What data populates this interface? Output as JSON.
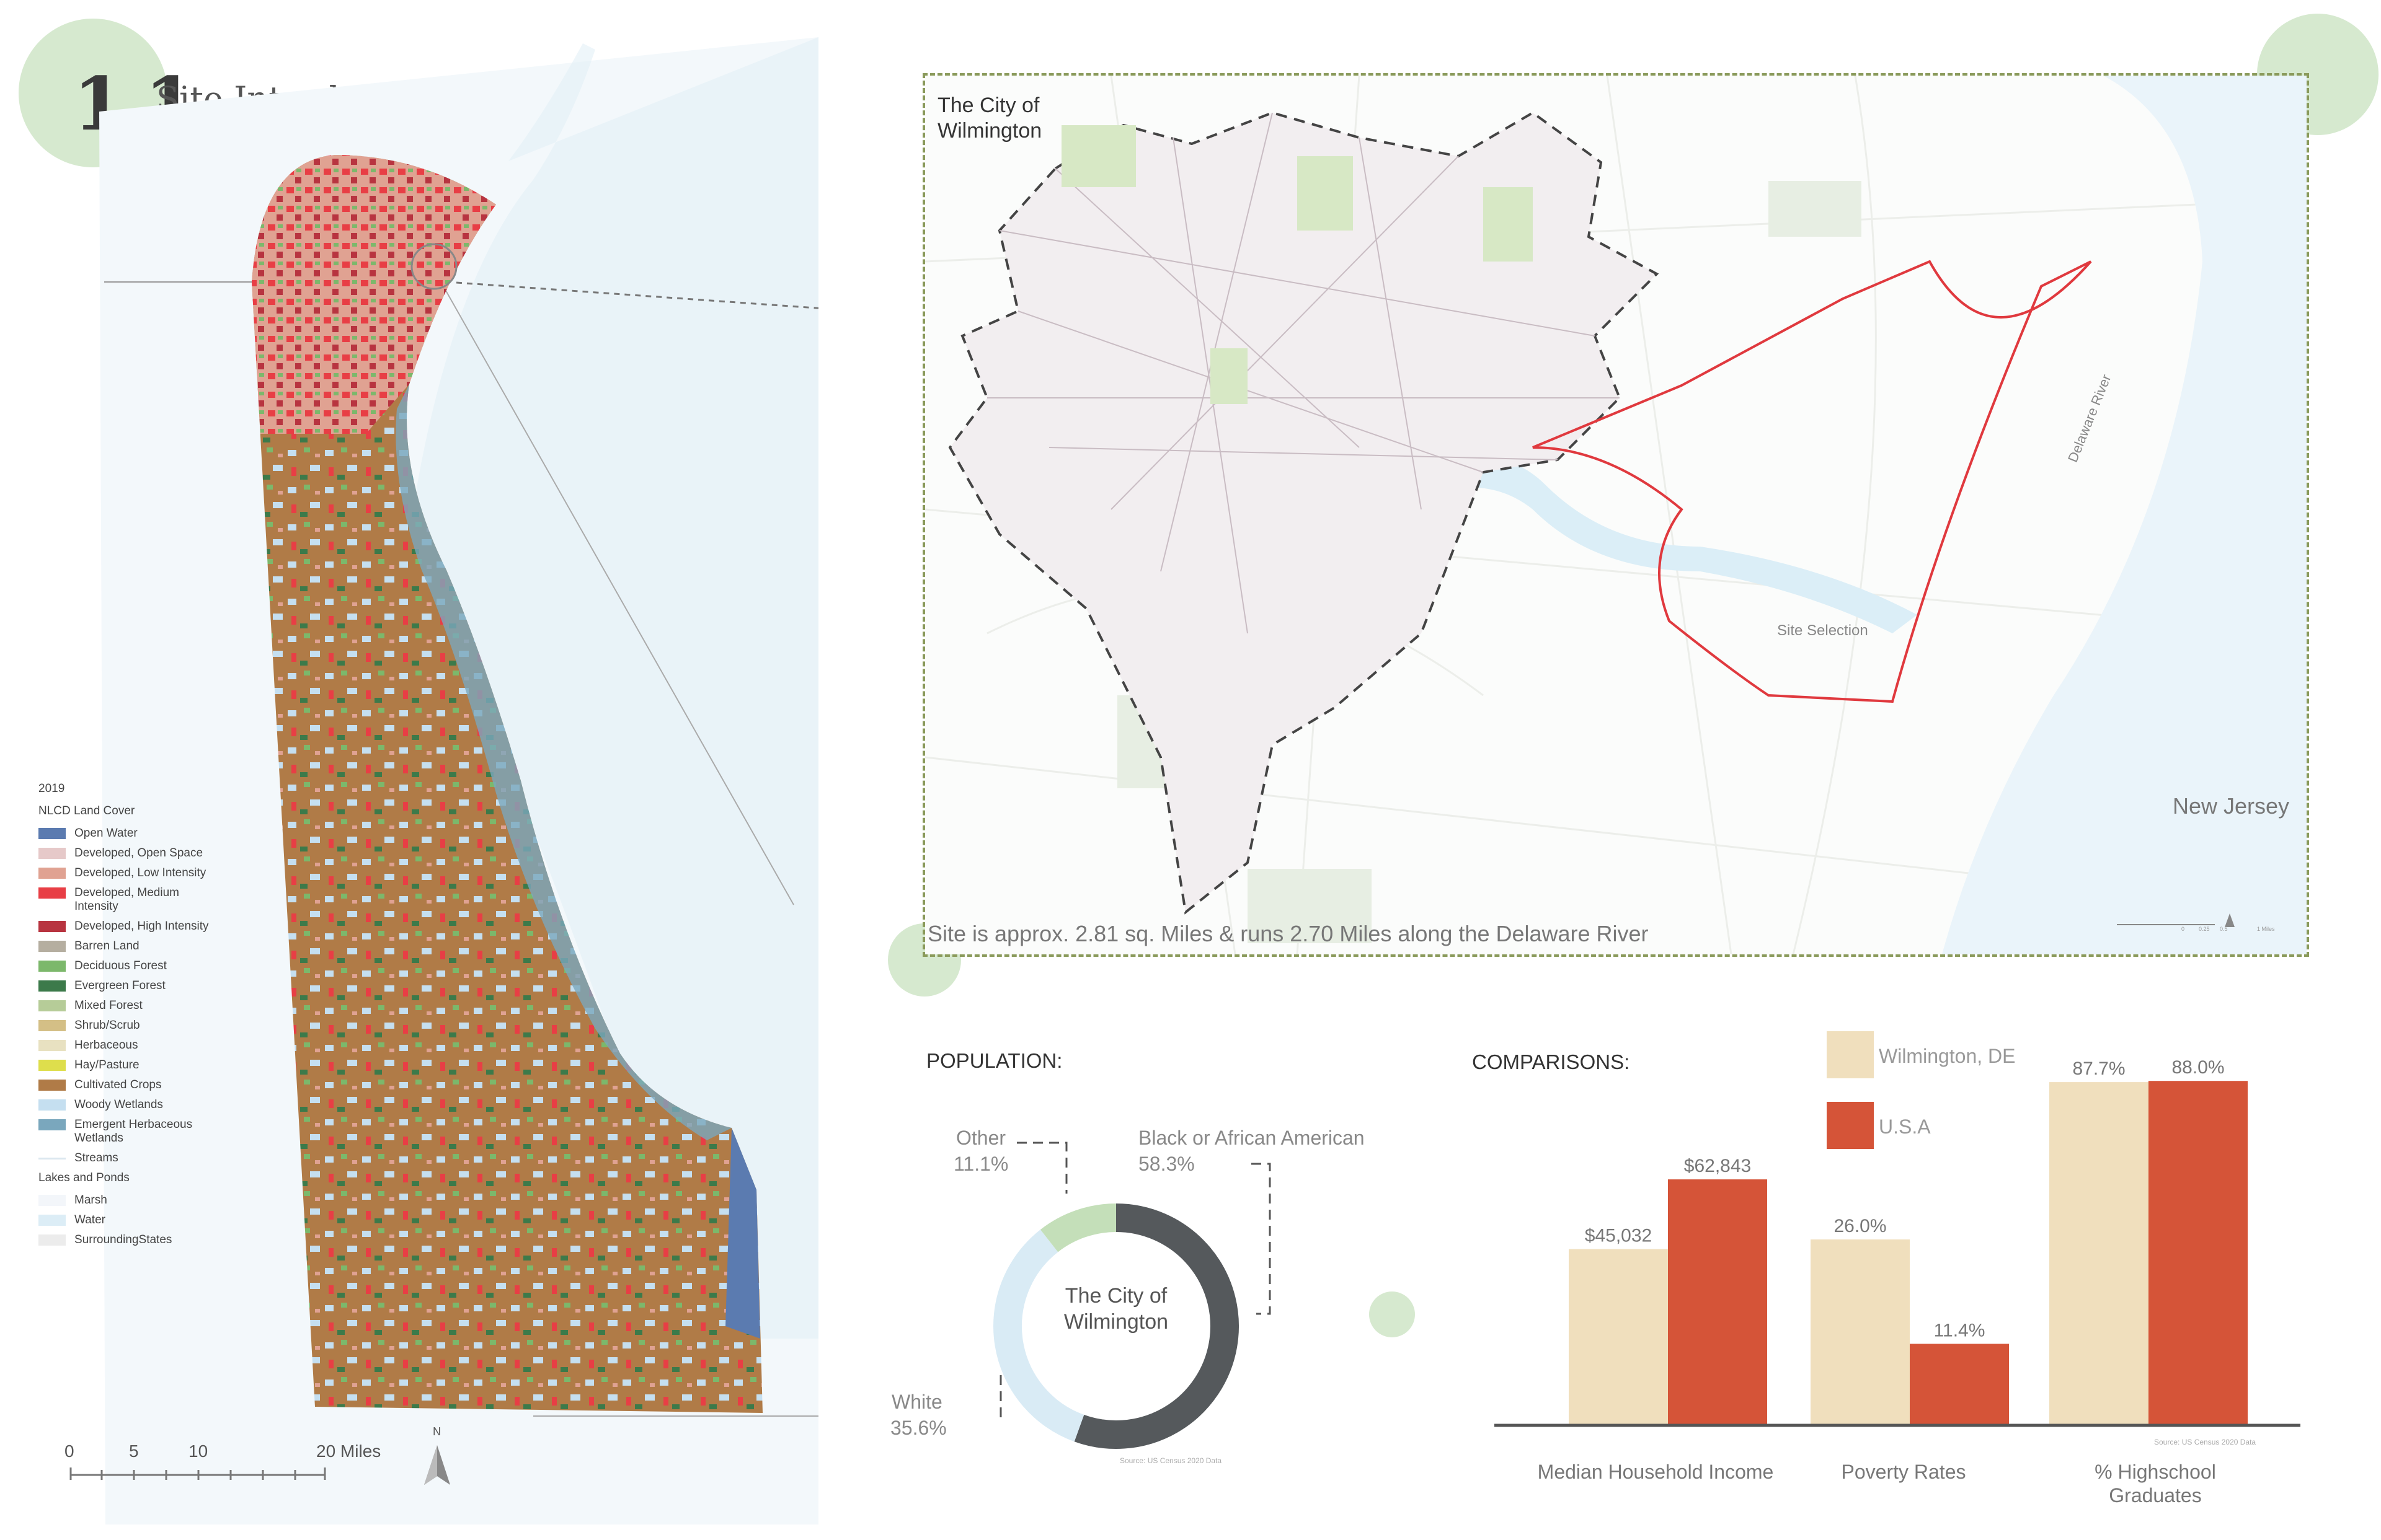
{
  "page": {
    "number": "1.1",
    "title": "Site Introduction"
  },
  "landcover_legend": {
    "year": "2019",
    "heading": "NLCD Land Cover",
    "items": [
      {
        "label": "Open Water",
        "color": "#5b7bb0"
      },
      {
        "label": "Developed, Open Space",
        "color": "#e6c9c9"
      },
      {
        "label": "Developed, Low Intensity",
        "color": "#e0a292"
      },
      {
        "label": "Developed, Medium Intensity",
        "color": "#e83e45"
      },
      {
        "label": "Developed, High Intensity",
        "color": "#b83440"
      },
      {
        "label": "Barren Land",
        "color": "#b5aea0"
      },
      {
        "label": "Deciduous Forest",
        "color": "#7cb86b"
      },
      {
        "label": "Evergreen Forest",
        "color": "#3c7a4a"
      },
      {
        "label": "Mixed Forest",
        "color": "#b6cc98"
      },
      {
        "label": "Shrub/Scrub",
        "color": "#d4bf86"
      },
      {
        "label": "Herbaceous",
        "color": "#e8e1c1"
      },
      {
        "label": "Hay/Pasture",
        "color": "#dede4c"
      },
      {
        "label": "Cultivated Crops",
        "color": "#b07b47"
      },
      {
        "label": "Woody Wetlands",
        "color": "#c5dff0"
      },
      {
        "label": "Emergent Herbaceous Wetlands",
        "color": "#7aa7bd"
      },
      {
        "label": "Streams",
        "color": "#dbe7ef",
        "line": true
      }
    ],
    "lakes_heading": "Lakes and Ponds",
    "lake_items": [
      {
        "label": "Marsh",
        "color": "#f3f6fa"
      },
      {
        "label": "Water",
        "color": "#dcedf6"
      },
      {
        "label": "SurroundingStates",
        "color": "#ececec"
      }
    ]
  },
  "scale_bar": {
    "ticks": [
      "0",
      "5",
      "10",
      "20 Miles"
    ],
    "north": "N"
  },
  "inset_map": {
    "title": "The City of Wilmington",
    "note": "Site is approx. 2.81 sq. Miles  & runs 2.70 Miles along the Delaware River",
    "site_label": "Site Selection",
    "river_label": "Delaware River",
    "state_label": "New Jersey",
    "scale_ticks": [
      "0",
      "0.25",
      "0.5",
      "1 Miles"
    ]
  },
  "population": {
    "heading": "POPULATION:",
    "center_label": "The City of Wilmington",
    "source": "Source: US Census 2020 Data"
  },
  "comparisons": {
    "heading": "COMPARISONS:",
    "source": "Source: US Census 2020 Data"
  },
  "colors": {
    "wilmington": "#f0dfbd",
    "usa": "#d55438",
    "donut_black": "#55595c",
    "donut_white": "#d9ebf5",
    "donut_other": "#c4dfb9",
    "accent_green": "#cfe5c7"
  },
  "chart_data": [
    {
      "type": "pie",
      "variant": "donut",
      "labels": [
        "Black or African American",
        "White",
        "Other"
      ],
      "values": [
        58.3,
        35.6,
        11.1
      ],
      "value_labels": [
        "58.3%",
        "35.6%",
        "11.1%"
      ]
    },
    {
      "type": "bar",
      "categories": [
        "Median Household Income",
        "Poverty Rates",
        "% Highschool Graduates"
      ],
      "series": [
        {
          "name": "Wilmington, DE",
          "values": [
            45032,
            26.0,
            87.7
          ],
          "labels": [
            "$45,032",
            "26.0%",
            "87.7%"
          ]
        },
        {
          "name": "U.S.A",
          "values": [
            62843,
            11.4,
            88.0
          ],
          "labels": [
            "$62,843",
            "11.4%",
            "88.0%"
          ]
        }
      ]
    }
  ]
}
